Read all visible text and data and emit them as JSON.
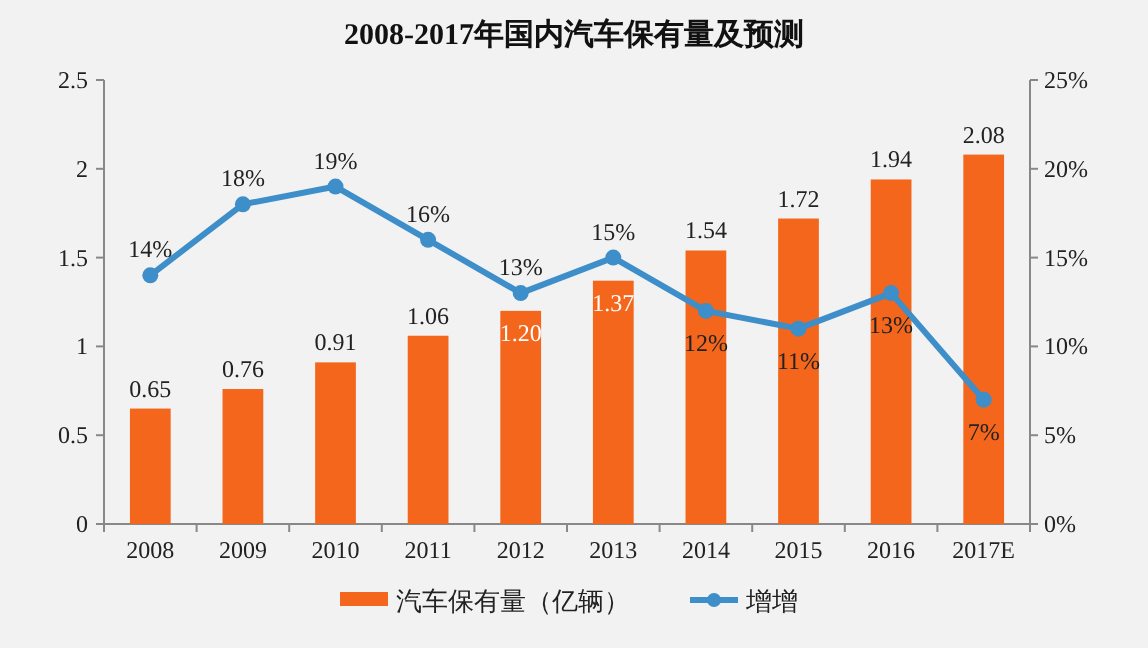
{
  "chart_data": {
    "type": "bar",
    "title": "2008-2017年国内汽车保有量及预测",
    "categories": [
      "2008",
      "2009",
      "2010",
      "2011",
      "2012",
      "2013",
      "2014",
      "2015",
      "2016",
      "2017E"
    ],
    "series": [
      {
        "name": "汽车保有量（亿辆）",
        "color": "#f4661b",
        "values": [
          0.65,
          0.76,
          0.91,
          1.06,
          1.2,
          1.37,
          1.54,
          1.72,
          1.94,
          2.08
        ],
        "value_labels": [
          "0.65",
          "0.76",
          "0.91",
          "1.06",
          "1.20",
          "1.37",
          "1.54",
          "1.72",
          "1.94",
          "2.08"
        ]
      },
      {
        "name": "增增",
        "type": "line",
        "axis": "y2",
        "color": "#3d8ec9",
        "marker": "circle",
        "values": [
          14,
          18,
          19,
          16,
          13,
          15,
          12,
          11,
          13,
          7
        ],
        "value_labels": [
          "14%",
          "18%",
          "19%",
          "16%",
          "13%",
          "15%",
          "12%",
          "11%",
          "13%",
          "7%"
        ]
      }
    ],
    "ylim": [
      0,
      2.5
    ],
    "yticks": [
      0,
      0.5,
      1,
      1.5,
      2,
      2.5
    ],
    "y2lim": [
      0,
      25
    ],
    "y2ticks": [
      {
        "value": 0,
        "label": "0%"
      },
      {
        "value": 5,
        "label": "5%"
      },
      {
        "value": 10,
        "label": "10%"
      },
      {
        "value": 15,
        "label": "15%"
      },
      {
        "value": 20,
        "label": "20%"
      },
      {
        "value": 25,
        "label": "25%"
      }
    ],
    "grid": false,
    "legend": "bottom"
  }
}
